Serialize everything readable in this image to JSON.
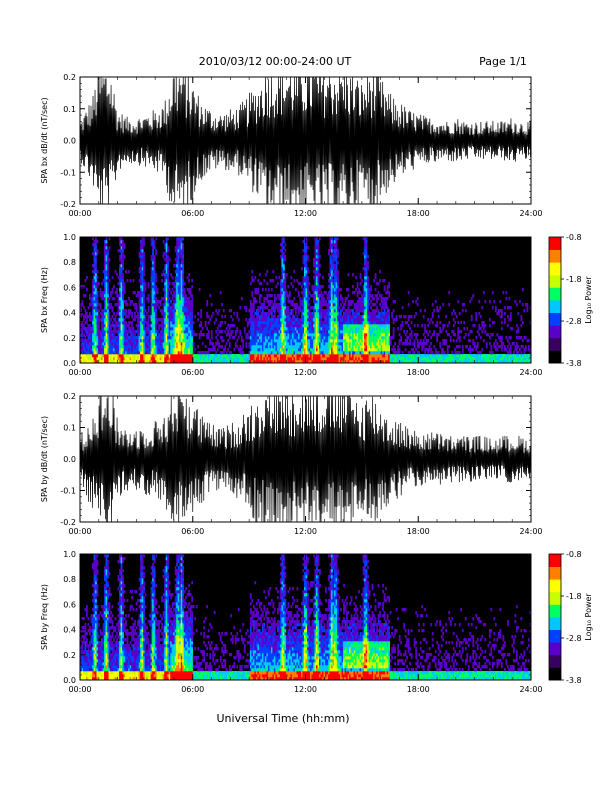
{
  "header": {
    "title": "2010/03/12  00:00-24:00 UT",
    "page": "Page 1/1"
  },
  "colors": {
    "trace": "#000000",
    "background": "#ffffff",
    "spectrogram_background": "#000000",
    "colormap": [
      "#000000",
      "#3a0060",
      "#5a00c8",
      "#0040ff",
      "#00c8ff",
      "#00ff60",
      "#c8ff00",
      "#ffff00",
      "#ff8000",
      "#ff0000"
    ]
  },
  "chart_data": [
    {
      "type": "line",
      "ylabel": "SPA bx dB/dt (nT/sec)",
      "ylim": [
        -0.2,
        0.2
      ],
      "yticks": [
        "0.2",
        "0.1",
        "0.0",
        "-0.1",
        "-0.2"
      ],
      "xlim": [
        0,
        24
      ],
      "xticks": [
        "00:00",
        "06:00",
        "12:00",
        "18:00",
        "24:00"
      ],
      "units_x": "hours UT",
      "envelope": {
        "hours": [
          0,
          0.3,
          0.7,
          1.0,
          1.2,
          1.6,
          2.0,
          2.5,
          3.0,
          3.5,
          4.0,
          4.5,
          5.0,
          5.5,
          6.0,
          6.5,
          7.0,
          7.5,
          8.0,
          8.5,
          9.0,
          9.5,
          10.0,
          10.5,
          11.0,
          11.5,
          12.0,
          12.5,
          13.0,
          13.5,
          14.0,
          14.5,
          15.0,
          15.5,
          16.0,
          16.5,
          17.0,
          17.5,
          18.0,
          18.5,
          19.0,
          19.5,
          20.0,
          20.5,
          21.0,
          21.5,
          22.0,
          22.5,
          23.0,
          23.5,
          24.0
        ],
        "amplitude": [
          0.05,
          0.08,
          0.12,
          0.2,
          0.2,
          0.2,
          0.08,
          0.06,
          0.06,
          0.07,
          0.08,
          0.1,
          0.2,
          0.2,
          0.15,
          0.1,
          0.08,
          0.07,
          0.08,
          0.09,
          0.12,
          0.15,
          0.2,
          0.2,
          0.2,
          0.2,
          0.2,
          0.2,
          0.2,
          0.2,
          0.2,
          0.18,
          0.15,
          0.2,
          0.16,
          0.12,
          0.1,
          0.08,
          0.07,
          0.06,
          0.06,
          0.05,
          0.06,
          0.05,
          0.05,
          0.05,
          0.05,
          0.05,
          0.06,
          0.05,
          0.05
        ]
      }
    },
    {
      "type": "heatmap",
      "ylabel": "SPA bx Freq (Hz)",
      "ylim": [
        0,
        1.0
      ],
      "yticks": [
        "1.0",
        "0.8",
        "0.6",
        "0.4",
        "0.2",
        "0.0"
      ],
      "xlim": [
        0,
        24
      ],
      "xticks": [
        "00:00",
        "06:00",
        "12:00",
        "18:00",
        "24:00"
      ],
      "colorbar": {
        "label": "Log₁₀ Power",
        "range": [
          -3.8,
          -0.8
        ],
        "ticks": [
          "-0.8",
          "-1.8",
          "-2.8",
          "-3.8"
        ]
      },
      "burst_hours": [
        0.8,
        1.4,
        2.2,
        3.3,
        3.9,
        4.6,
        5.2,
        5.4,
        10.8,
        12.0,
        12.6,
        13.4,
        13.6,
        15.2
      ],
      "background_level": -3.5
    },
    {
      "type": "line",
      "ylabel": "SPA by dB/dt (nT/sec)",
      "ylim": [
        -0.2,
        0.2
      ],
      "yticks": [
        "0.2",
        "0.1",
        "0.0",
        "-0.1",
        "-0.2"
      ],
      "xlim": [
        0,
        24
      ],
      "xticks": [
        "00:00",
        "06:00",
        "12:00",
        "18:00",
        "24:00"
      ],
      "units_x": "hours UT",
      "envelope": {
        "hours": [
          0,
          0.3,
          0.7,
          1.0,
          1.2,
          1.6,
          2.0,
          2.5,
          3.0,
          3.5,
          4.0,
          4.5,
          5.0,
          5.5,
          6.0,
          6.5,
          7.0,
          7.5,
          8.0,
          8.5,
          9.0,
          9.5,
          10.0,
          10.5,
          11.0,
          11.5,
          12.0,
          12.5,
          13.0,
          13.5,
          14.0,
          14.5,
          15.0,
          15.5,
          16.0,
          16.5,
          17.0,
          17.5,
          18.0,
          18.5,
          19.0,
          19.5,
          20.0,
          20.5,
          21.0,
          21.5,
          22.0,
          22.5,
          23.0,
          23.5,
          24.0
        ],
        "amplitude": [
          0.06,
          0.09,
          0.14,
          0.2,
          0.2,
          0.2,
          0.1,
          0.08,
          0.08,
          0.09,
          0.1,
          0.12,
          0.2,
          0.2,
          0.16,
          0.11,
          0.09,
          0.08,
          0.09,
          0.11,
          0.14,
          0.17,
          0.2,
          0.2,
          0.2,
          0.2,
          0.2,
          0.2,
          0.2,
          0.2,
          0.2,
          0.18,
          0.15,
          0.18,
          0.14,
          0.11,
          0.1,
          0.08,
          0.07,
          0.07,
          0.07,
          0.06,
          0.06,
          0.06,
          0.06,
          0.06,
          0.05,
          0.06,
          0.06,
          0.06,
          0.05
        ]
      }
    },
    {
      "type": "heatmap",
      "ylabel": "SPA by Freq (Hz)",
      "ylim": [
        0,
        1.0
      ],
      "yticks": [
        "1.0",
        "0.8",
        "0.6",
        "0.4",
        "0.2",
        "0.0"
      ],
      "xlim": [
        0,
        24
      ],
      "xticks": [
        "00:00",
        "06:00",
        "12:00",
        "18:00",
        "24:00"
      ],
      "colorbar": {
        "label": "Log₁₀ Power",
        "range": [
          -3.8,
          -0.8
        ],
        "ticks": [
          "-0.8",
          "-1.8",
          "-2.8",
          "-3.8"
        ]
      },
      "burst_hours": [
        0.8,
        1.4,
        2.2,
        3.3,
        3.9,
        4.6,
        5.2,
        5.4,
        10.8,
        12.0,
        12.6,
        13.4,
        13.6,
        15.2
      ],
      "background_level": -3.5
    }
  ],
  "footer": {
    "xlabel": "Universal Time (hh:mm)"
  }
}
